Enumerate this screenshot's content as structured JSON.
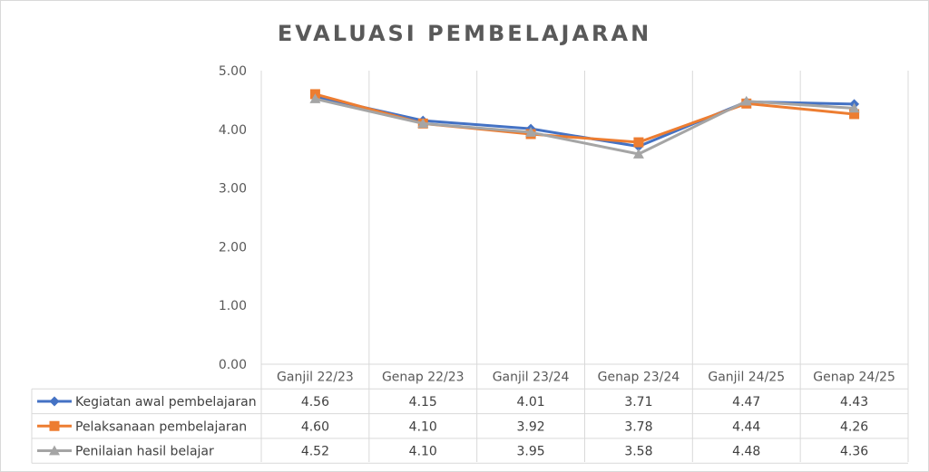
{
  "chart_data": {
    "type": "line",
    "title": "EVALUASI PEMBELAJARAN",
    "categories": [
      "Ganjil 22/23",
      "Genap 22/23",
      "Ganjil 23/24",
      "Genap 23/24",
      "Ganjil 24/25",
      "Genap 24/25"
    ],
    "series": [
      {
        "name": "Kegiatan awal pembelajaran",
        "values": [
          4.56,
          4.15,
          4.01,
          3.71,
          4.47,
          4.43
        ],
        "labels": [
          "4.56",
          "4.15",
          "4.01",
          "3.71",
          "4.47",
          "4.43"
        ],
        "color": "#4472C4",
        "marker": "diamond"
      },
      {
        "name": "Pelaksanaan pembelajaran",
        "values": [
          4.6,
          4.1,
          3.92,
          3.78,
          4.44,
          4.26
        ],
        "labels": [
          "4.60",
          "4.10",
          "3.92",
          "3.78",
          "4.44",
          "4.26"
        ],
        "color": "#ED7D31",
        "marker": "square"
      },
      {
        "name": "Penilaian hasil belajar",
        "values": [
          4.52,
          4.1,
          3.95,
          3.58,
          4.48,
          4.36
        ],
        "labels": [
          "4.52",
          "4.10",
          "3.95",
          "3.58",
          "4.48",
          "4.36"
        ],
        "color": "#A5A5A5",
        "marker": "triangle"
      }
    ],
    "ylim": [
      0,
      5
    ],
    "yticks": [
      "0.00",
      "1.00",
      "2.00",
      "3.00",
      "4.00",
      "5.00"
    ],
    "grid": "vertical",
    "legend": "data-table-left"
  }
}
